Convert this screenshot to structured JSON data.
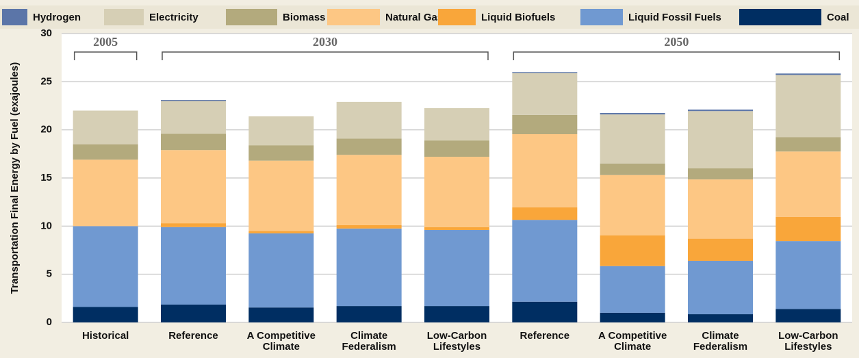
{
  "chart_data": {
    "type": "stacked_bar",
    "y_label": "Transportation Final Energy by Fuel (exajoules)",
    "categories": [
      "Historical",
      "Reference",
      "A Competitive Climate",
      "Climate Federalism",
      "Low-Carbon Lifestyles",
      "Reference",
      "A Competitive Climate",
      "Climate Federalism",
      "Low-Carbon Lifestyles"
    ],
    "groups": [
      {
        "label": "2005",
        "span": 1
      },
      {
        "label": "2030",
        "span": 4
      },
      {
        "label": "2050",
        "span": 4
      }
    ],
    "series": [
      {
        "name": "Coal",
        "color": "#002e62",
        "values": [
          1.6,
          1.85,
          1.55,
          1.7,
          1.7,
          2.15,
          1.0,
          0.85,
          1.4
        ]
      },
      {
        "name": "Liquid Fossil Fuels",
        "color": "#7099d1",
        "values": [
          8.4,
          8.05,
          7.7,
          8.05,
          7.9,
          8.5,
          4.85,
          5.55,
          7.05
        ]
      },
      {
        "name": "Liquid Biofuels",
        "color": "#f9a63a",
        "values": [
          0,
          0.4,
          0.25,
          0.35,
          0.3,
          1.3,
          3.2,
          2.3,
          2.5
        ]
      },
      {
        "name": "Natural Gas",
        "color": "#fdc784",
        "values": [
          6.9,
          7.6,
          7.3,
          7.3,
          7.3,
          7.6,
          6.25,
          6.15,
          6.8
        ]
      },
      {
        "name": "Biomass",
        "color": "#b3aa7d",
        "values": [
          1.6,
          1.7,
          1.6,
          1.7,
          1.7,
          2.0,
          1.2,
          1.15,
          1.5
        ]
      },
      {
        "name": "Electricity",
        "color": "#d6cfb5",
        "values": [
          3.5,
          3.4,
          3.0,
          3.8,
          3.35,
          4.35,
          5.1,
          5.95,
          6.45
        ]
      },
      {
        "name": "Hydrogen",
        "color": "#5b75a8",
        "values": [
          0,
          0.1,
          0,
          0,
          0,
          0.1,
          0.15,
          0.15,
          0.15
        ]
      }
    ],
    "ylim": [
      0,
      30
    ],
    "yticks": [
      0,
      5,
      10,
      15,
      20,
      25,
      30
    ],
    "grid": true
  }
}
